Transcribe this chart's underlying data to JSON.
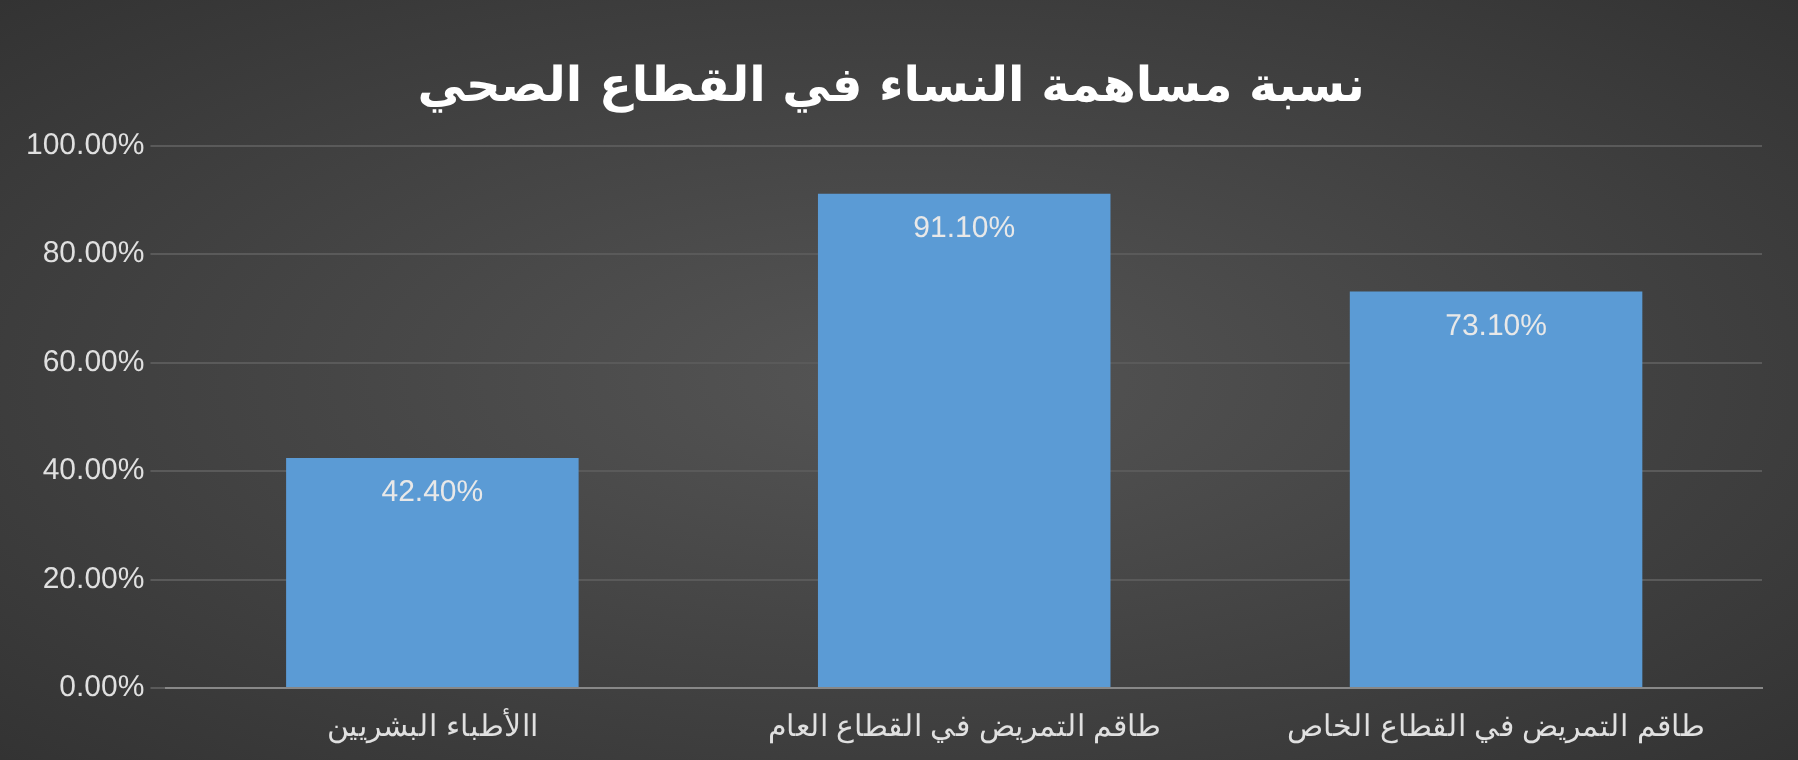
{
  "chart_data": {
    "type": "bar",
    "title": "نسبة مساهمة النساء في القطاع الصحي",
    "categories": [
      "االأطباء البشريين",
      "طاقم التمريض في القطاع العام",
      "طاقم التمريض في القطاع الخاص"
    ],
    "values": [
      42.4,
      91.1,
      73.1
    ],
    "value_labels": [
      "42.40%",
      "91.10%",
      "73.10%"
    ],
    "color": "#5b9bd5",
    "ylim": [
      0,
      100
    ],
    "yticks": [
      {
        "value": 0,
        "label": "0.00%"
      },
      {
        "value": 20,
        "label": "20.00%"
      },
      {
        "value": 40,
        "label": "40.00%"
      },
      {
        "value": 60,
        "label": "60.00%"
      },
      {
        "value": 80,
        "label": "80.00%"
      },
      {
        "value": 100,
        "label": "100.00%"
      }
    ],
    "grid": "y",
    "legend": false
  }
}
